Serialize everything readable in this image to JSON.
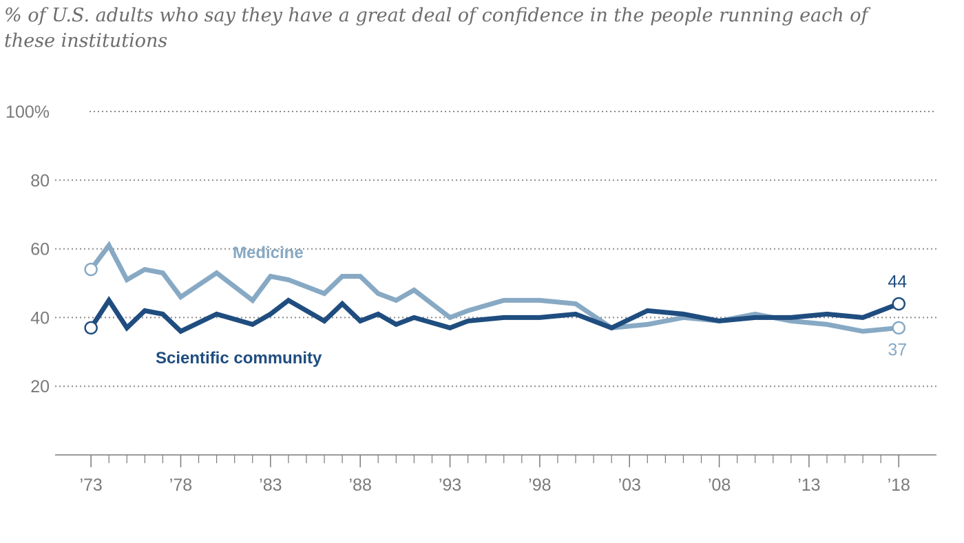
{
  "subtitle": "% of U.S. adults who say they have a great deal of confidence in the people running each of these institutions",
  "chart_data": {
    "type": "line",
    "ylim": [
      0,
      100
    ],
    "yticks": [
      {
        "value": 100,
        "label": "100%"
      },
      {
        "value": 80,
        "label": "80"
      },
      {
        "value": 60,
        "label": "60"
      },
      {
        "value": 40,
        "label": "40"
      },
      {
        "value": 20,
        "label": "20"
      }
    ],
    "xlim": [
      1971,
      2020.1
    ],
    "xticks": [
      {
        "value": 1973,
        "label": "’73"
      },
      {
        "value": 1978,
        "label": "’78"
      },
      {
        "value": 1983,
        "label": "’83"
      },
      {
        "value": 1988,
        "label": "’88"
      },
      {
        "value": 1993,
        "label": "’93"
      },
      {
        "value": 1998,
        "label": "’98"
      },
      {
        "value": 2003,
        "label": "’03"
      },
      {
        "value": 2008,
        "label": "’08"
      },
      {
        "value": 2013,
        "label": "’13"
      },
      {
        "value": 2018,
        "label": "’18"
      }
    ],
    "minor_ticks": [
      1974,
      1975,
      1976,
      1977,
      1979,
      1980,
      1981,
      1982,
      1984,
      1985,
      1986,
      1987,
      1989,
      1990,
      1991,
      1992,
      1994,
      1995,
      1996,
      1997,
      1999,
      2000,
      2001,
      2002,
      2004,
      2005,
      2006,
      2007,
      2009,
      2010,
      2011,
      2012,
      2014,
      2015,
      2016,
      2017
    ],
    "grid": true,
    "series": [
      {
        "name": "Medicine",
        "color": "#87a9c4",
        "end_label": "37",
        "points": [
          [
            1973,
            54
          ],
          [
            1974,
            61
          ],
          [
            1975,
            51
          ],
          [
            1976,
            54
          ],
          [
            1977,
            53
          ],
          [
            1978,
            46
          ],
          [
            1980,
            53
          ],
          [
            1982,
            45
          ],
          [
            1983,
            52
          ],
          [
            1984,
            51
          ],
          [
            1986,
            47
          ],
          [
            1987,
            52
          ],
          [
            1988,
            52
          ],
          [
            1989,
            47
          ],
          [
            1990,
            45
          ],
          [
            1991,
            48
          ],
          [
            1993,
            40
          ],
          [
            1994,
            42
          ],
          [
            1996,
            45
          ],
          [
            1998,
            45
          ],
          [
            2000,
            44
          ],
          [
            2002,
            37
          ],
          [
            2004,
            38
          ],
          [
            2006,
            40
          ],
          [
            2008,
            39
          ],
          [
            2010,
            41
          ],
          [
            2012,
            39
          ],
          [
            2014,
            38
          ],
          [
            2016,
            36
          ],
          [
            2018,
            37
          ]
        ]
      },
      {
        "name": "Scientific community",
        "color": "#1f4d7f",
        "end_label": "44",
        "points": [
          [
            1973,
            37
          ],
          [
            1974,
            45
          ],
          [
            1975,
            37
          ],
          [
            1976,
            42
          ],
          [
            1977,
            41
          ],
          [
            1978,
            36
          ],
          [
            1980,
            41
          ],
          [
            1982,
            38
          ],
          [
            1983,
            41
          ],
          [
            1984,
            45
          ],
          [
            1986,
            39
          ],
          [
            1987,
            44
          ],
          [
            1988,
            39
          ],
          [
            1989,
            41
          ],
          [
            1990,
            38
          ],
          [
            1991,
            40
          ],
          [
            1993,
            37
          ],
          [
            1994,
            39
          ],
          [
            1996,
            40
          ],
          [
            1998,
            40
          ],
          [
            2000,
            41
          ],
          [
            2002,
            37
          ],
          [
            2004,
            42
          ],
          [
            2006,
            41
          ],
          [
            2008,
            39
          ],
          [
            2010,
            40
          ],
          [
            2012,
            40
          ],
          [
            2014,
            41
          ],
          [
            2016,
            40
          ],
          [
            2018,
            44
          ]
        ]
      }
    ]
  }
}
